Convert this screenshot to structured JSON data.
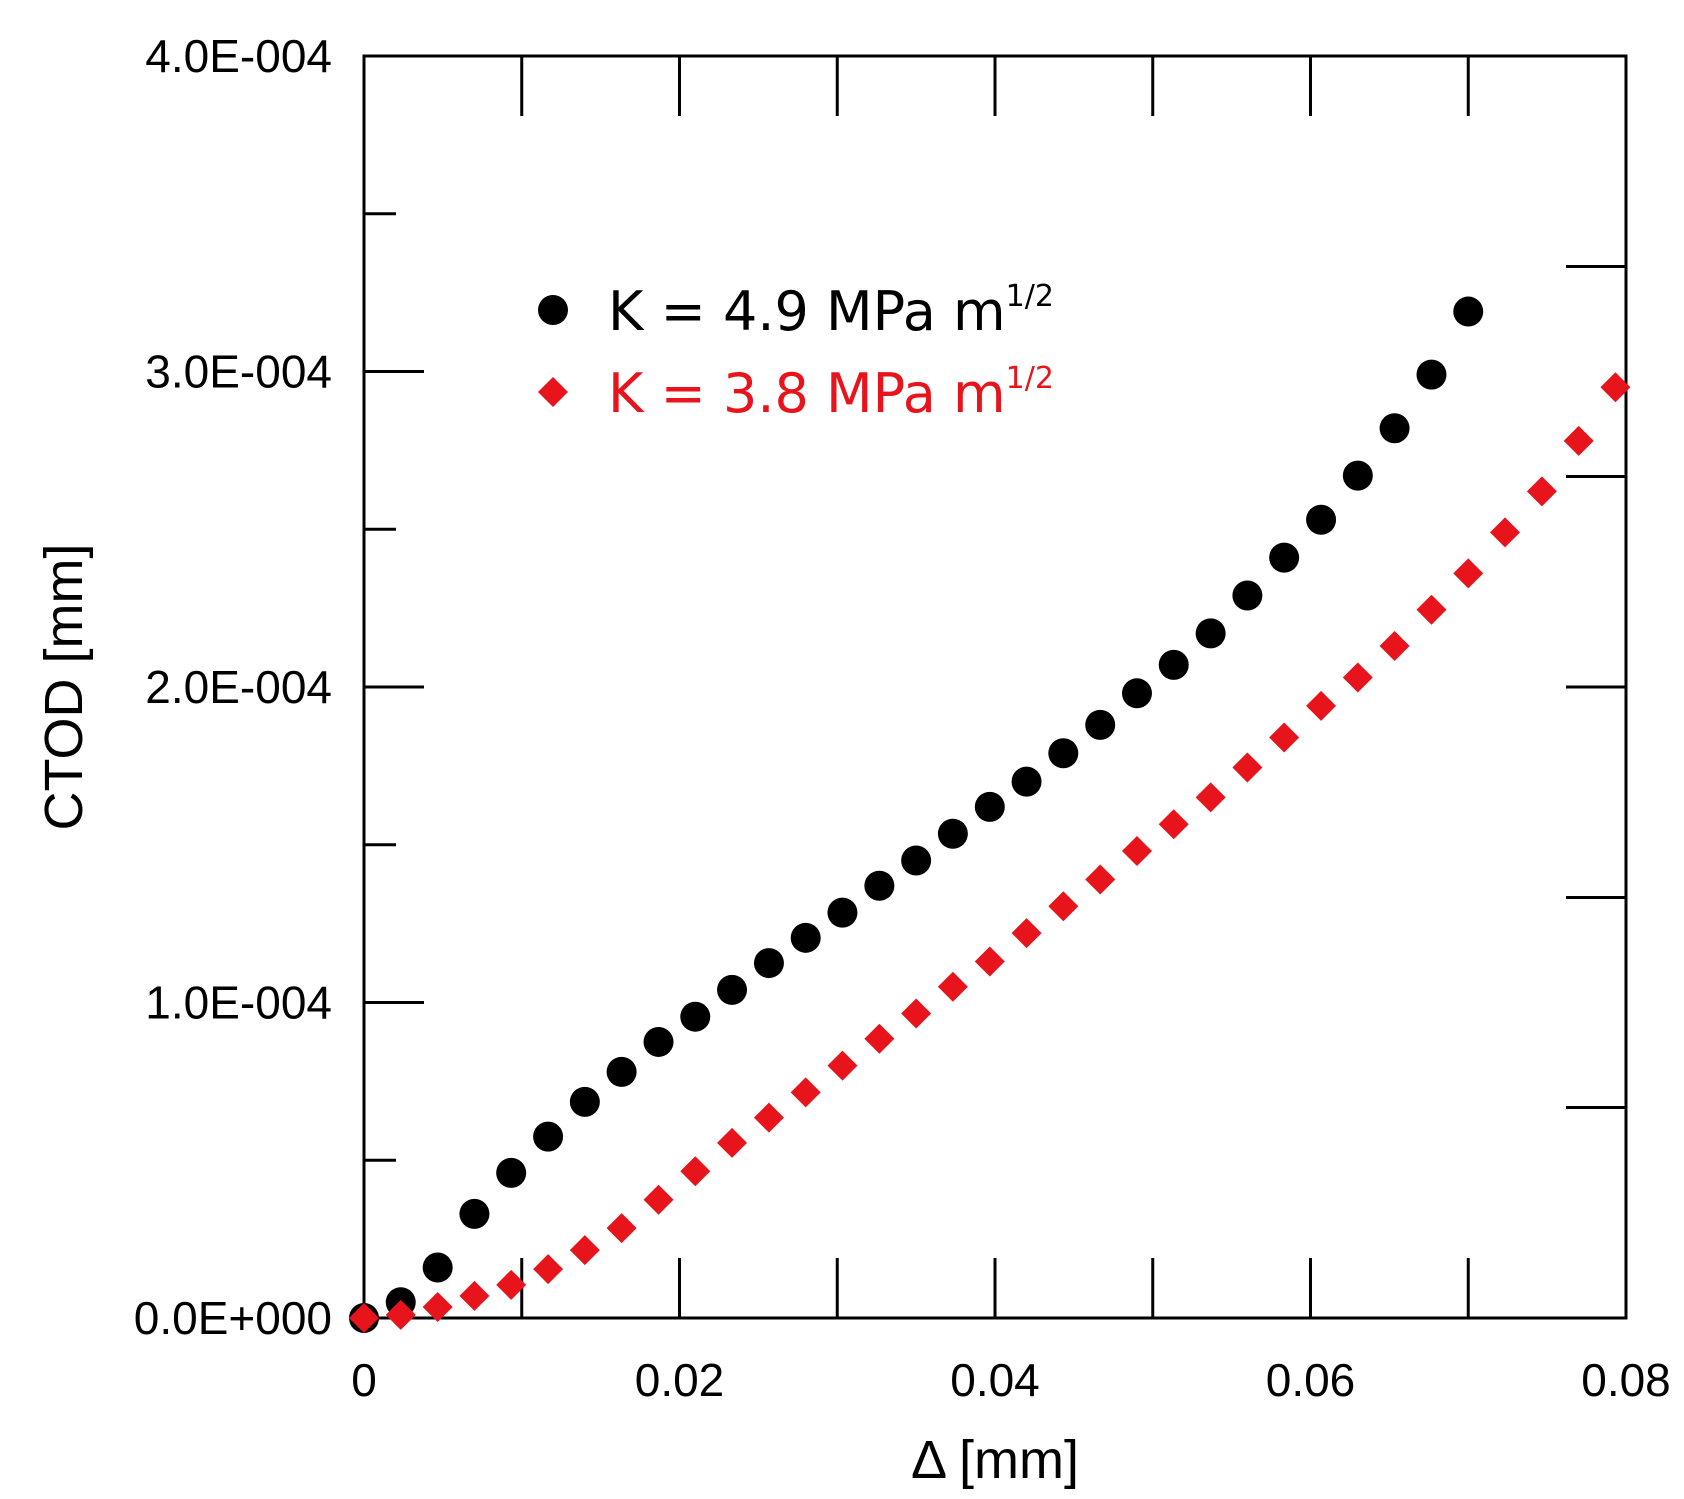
{
  "chart_data": {
    "type": "scatter",
    "xlabel": "Δ [mm]",
    "ylabel": "CTOD [mm]",
    "xlim": [
      0,
      0.08
    ],
    "ylim": [
      0,
      0.0004
    ],
    "x_ticks": [
      0,
      0.02,
      0.04,
      0.06,
      0.08
    ],
    "x_tick_labels": [
      "0",
      "0.02",
      "0.04",
      "0.06",
      "0.08"
    ],
    "y_ticks": [
      0,
      0.0001,
      0.0002,
      0.0003,
      0.0004
    ],
    "y_tick_labels": [
      "0.0E+000",
      "1.0E-004",
      "2.0E-004",
      "3.0E-004",
      "4.0E-004"
    ],
    "y_minor_ticks": [
      5e-05,
      0.00015,
      0.00025,
      0.00035
    ],
    "right_axis_ticks": [
      0.0,
      6.67e-05,
      0.0001333,
      0.0002,
      0.0002667,
      0.0003333
    ],
    "grid": false,
    "legend_position": "upper-left",
    "series": [
      {
        "name": "K = 4.9 MPa m",
        "name_superscript": "1/2",
        "marker": "circle",
        "color": "#000000",
        "x": [
          0,
          0.00233,
          0.00467,
          0.007,
          0.00933,
          0.01167,
          0.014,
          0.01633,
          0.01867,
          0.021,
          0.02333,
          0.02567,
          0.028,
          0.03033,
          0.03267,
          0.035,
          0.03733,
          0.03967,
          0.042,
          0.04433,
          0.04667,
          0.049,
          0.05133,
          0.05367,
          0.056,
          0.05833,
          0.06067,
          0.063,
          0.06533,
          0.06767,
          0.07
        ],
        "y": [
          0,
          5e-06,
          1.6e-05,
          3.3e-05,
          4.6e-05,
          5.75e-05,
          6.85e-05,
          7.8e-05,
          8.75e-05,
          9.55e-05,
          0.000104,
          0.0001125,
          0.0001205,
          0.0001285,
          0.000137,
          0.000145,
          0.0001535,
          0.000162,
          0.00017,
          0.000179,
          0.000188,
          0.000198,
          0.000207,
          0.000217,
          0.000229,
          0.000241,
          0.000253,
          0.000267,
          0.000282,
          0.000299,
          0.000319
        ]
      },
      {
        "name": "K = 3.8 MPa m",
        "name_superscript": "1/2",
        "marker": "diamond",
        "color": "#e8141c",
        "x": [
          0,
          0.00233,
          0.00467,
          0.007,
          0.00933,
          0.01167,
          0.014,
          0.01633,
          0.01867,
          0.021,
          0.02333,
          0.02567,
          0.028,
          0.03033,
          0.03267,
          0.035,
          0.03733,
          0.03967,
          0.042,
          0.04433,
          0.04667,
          0.049,
          0.05133,
          0.05367,
          0.056,
          0.05833,
          0.06067,
          0.063,
          0.06533,
          0.06767,
          0.07,
          0.07233,
          0.07467,
          0.077,
          0.07933
        ],
        "y": [
          0,
          1e-06,
          3.5e-06,
          7e-06,
          1.05e-05,
          1.55e-05,
          2.15e-05,
          2.85e-05,
          3.75e-05,
          4.65e-05,
          5.55e-05,
          6.35e-05,
          7.15e-05,
          8e-05,
          8.85e-05,
          9.65e-05,
          0.000105,
          0.000113,
          0.000122,
          0.0001305,
          0.000139,
          0.000148,
          0.0001565,
          0.000165,
          0.0001745,
          0.000184,
          0.000194,
          0.000203,
          0.000213,
          0.0002245,
          0.000236,
          0.000249,
          0.000262,
          0.000278,
          0.000295
        ]
      }
    ]
  }
}
